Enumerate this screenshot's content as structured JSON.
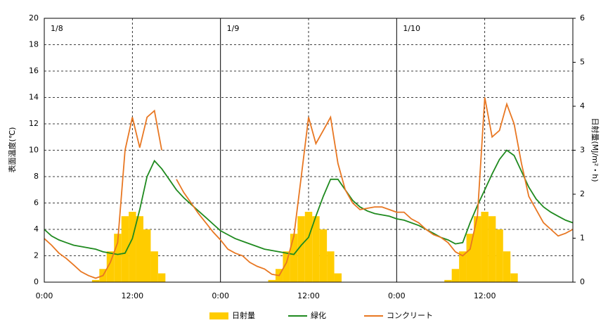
{
  "chart_data": {
    "type": "line",
    "y_label": "表面温度(℃)",
    "y2_label": "日射量(MJ/m²・h)",
    "annotations": [
      "1/8",
      "1/9",
      "1/10"
    ],
    "xlim": [
      0,
      72
    ],
    "ylim": [
      0,
      20
    ],
    "y2lim": [
      0,
      6
    ],
    "xticks": [
      {
        "value": 0,
        "label": "0:00"
      },
      {
        "value": 12,
        "label": "12:00"
      },
      {
        "value": 24,
        "label": "0:00"
      },
      {
        "value": 36,
        "label": "12:00"
      },
      {
        "value": 48,
        "label": "0:00"
      },
      {
        "value": 60,
        "label": "12:00"
      }
    ],
    "yticks": [
      0,
      2,
      4,
      6,
      8,
      10,
      12,
      14,
      16,
      18,
      20
    ],
    "y2ticks": [
      0,
      1,
      2,
      3,
      4,
      5,
      6
    ],
    "grid": true,
    "x": [
      0,
      1,
      2,
      3,
      4,
      5,
      6,
      7,
      8,
      9,
      10,
      11,
      12,
      13,
      14,
      15,
      16,
      17,
      18,
      19,
      20,
      21,
      22,
      23,
      24,
      25,
      26,
      27,
      28,
      29,
      30,
      31,
      32,
      33,
      34,
      35,
      36,
      37,
      38,
      39,
      40,
      41,
      42,
      43,
      44,
      45,
      46,
      47,
      48,
      49,
      50,
      51,
      52,
      53,
      54,
      55,
      56,
      57,
      58,
      59,
      60,
      61,
      62,
      63,
      64,
      65,
      66,
      67,
      68,
      69,
      70,
      71,
      72
    ],
    "series": [
      {
        "name": "日射量",
        "type": "bar",
        "axis": "y2",
        "color": "#ffcc00",
        "values": [
          0,
          0,
          0,
          0,
          0,
          0,
          0,
          0.05,
          0.3,
          0.7,
          1.1,
          1.5,
          1.6,
          1.5,
          1.2,
          0.7,
          0.2,
          0,
          0,
          0,
          0,
          0,
          0,
          0,
          0,
          0,
          0,
          0,
          0,
          0,
          0,
          0.05,
          0.3,
          0.7,
          1.1,
          1.5,
          1.6,
          1.5,
          1.2,
          0.7,
          0.2,
          0,
          0,
          0,
          0,
          0,
          0,
          0,
          0,
          0,
          0,
          0,
          0,
          0,
          0,
          0.05,
          0.3,
          0.7,
          1.1,
          1.5,
          1.6,
          1.5,
          1.2,
          0.7,
          0.2,
          0,
          0,
          0,
          0,
          0,
          0,
          0,
          0
        ]
      },
      {
        "name": "緑化",
        "type": "line",
        "color": "#1f8a1f",
        "values": [
          4.0,
          3.5,
          3.2,
          3.0,
          2.8,
          2.7,
          2.6,
          2.5,
          2.3,
          2.2,
          2.1,
          2.2,
          3.3,
          5.5,
          8.0,
          9.2,
          8.6,
          7.8,
          7.0,
          6.4,
          5.9,
          5.4,
          4.9,
          4.4,
          3.9,
          3.6,
          3.3,
          3.1,
          2.9,
          2.7,
          2.5,
          2.4,
          2.3,
          2.2,
          2.1,
          2.8,
          3.4,
          5.0,
          6.5,
          7.8,
          7.8,
          7.0,
          6.2,
          5.7,
          5.4,
          5.2,
          5.1,
          5.0,
          4.8,
          4.7,
          4.5,
          4.3,
          4.0,
          3.7,
          3.4,
          3.2,
          2.9,
          3.0,
          4.5,
          5.8,
          7.0,
          8.2,
          9.3,
          10.0,
          9.6,
          8.4,
          7.2,
          6.3,
          5.7,
          5.3,
          5.0,
          4.7,
          4.5
        ]
      },
      {
        "name": "コンクリート",
        "type": "line",
        "color": "#e87722",
        "values": [
          3.3,
          2.8,
          2.2,
          1.8,
          1.3,
          0.8,
          0.5,
          0.3,
          0.5,
          1.5,
          3.0,
          10.0,
          12.5,
          10.2,
          12.5,
          13.0,
          10.0,
          null,
          7.8,
          6.8,
          6.0,
          5.2,
          4.5,
          3.8,
          3.2,
          2.5,
          2.2,
          2.0,
          1.5,
          1.2,
          1.0,
          0.6,
          0.5,
          1.5,
          3.5,
          8.0,
          12.5,
          10.5,
          11.5,
          12.5,
          9.0,
          7.0,
          6.0,
          5.5,
          5.6,
          5.7,
          5.7,
          5.5,
          5.3,
          5.3,
          4.8,
          4.5,
          4.0,
          3.6,
          3.4,
          3.0,
          2.3,
          2.0,
          2.5,
          5.0,
          14.0,
          11.0,
          11.5,
          13.5,
          12.0,
          9.0,
          6.5,
          5.5,
          4.5,
          4.0,
          3.5,
          3.7,
          4.0
        ]
      }
    ]
  }
}
